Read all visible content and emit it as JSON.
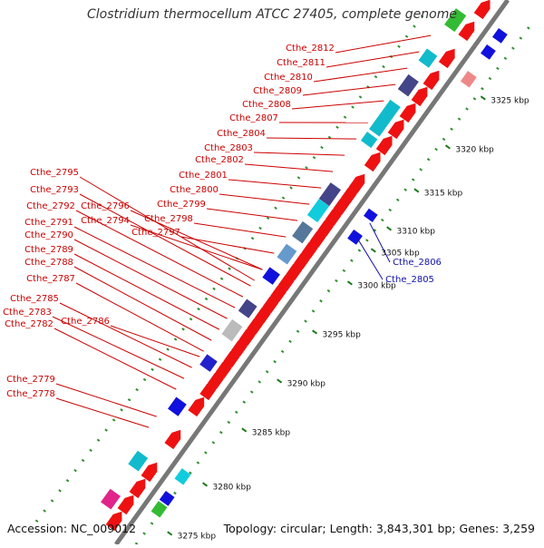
{
  "title": "Clostridium thermocellum ATCC 27405, complete genome",
  "footer": {
    "accession": "Accession: NC_009012",
    "summary": "Topology: circular; Length: 3,843,301 bp; Genes: 3,259"
  },
  "colors": {
    "cds": "#ee1111",
    "label_red": "#cc0000",
    "label_blue": "#1111aa",
    "backbone": "#888888",
    "dots": "#2f8f2f"
  },
  "ticks": [
    {
      "label": "3275 kbp"
    },
    {
      "label": "3280 kbp"
    },
    {
      "label": "3285 kbp"
    },
    {
      "label": "3290 kbp"
    },
    {
      "label": "3295 kbp"
    },
    {
      "label": "3300 kbp"
    },
    {
      "label": "3305 kbp"
    },
    {
      "label": "3310 kbp"
    },
    {
      "label": "3315 kbp"
    },
    {
      "label": "3320 kbp"
    },
    {
      "label": "3325 kbp"
    }
  ],
  "gene_labels": [
    {
      "name": "Cthe_2812"
    },
    {
      "name": "Cthe_2811"
    },
    {
      "name": "Cthe_2810"
    },
    {
      "name": "Cthe_2809"
    },
    {
      "name": "Cthe_2808"
    },
    {
      "name": "Cthe_2807"
    },
    {
      "name": "Cthe_2804"
    },
    {
      "name": "Cthe_2803"
    },
    {
      "name": "Cthe_2802"
    },
    {
      "name": "Cthe_2801"
    },
    {
      "name": "Cthe_2800"
    },
    {
      "name": "Cthe_2799"
    },
    {
      "name": "Cthe_2798"
    },
    {
      "name": "Cthe_2797"
    },
    {
      "name": "Cthe_2796"
    },
    {
      "name": "Cthe_2795"
    },
    {
      "name": "Cthe_2794"
    },
    {
      "name": "Cthe_2793"
    },
    {
      "name": "Cthe_2792"
    },
    {
      "name": "Cthe_2791"
    },
    {
      "name": "Cthe_2790"
    },
    {
      "name": "Cthe_2789"
    },
    {
      "name": "Cthe_2788"
    },
    {
      "name": "Cthe_2787"
    },
    {
      "name": "Cthe_2786"
    },
    {
      "name": "Cthe_2785"
    },
    {
      "name": "Cthe_2783"
    },
    {
      "name": "Cthe_2782"
    },
    {
      "name": "Cthe_2779"
    },
    {
      "name": "Cthe_2778"
    },
    {
      "name": "Cthe_2806"
    },
    {
      "name": "Cthe_2805"
    }
  ]
}
